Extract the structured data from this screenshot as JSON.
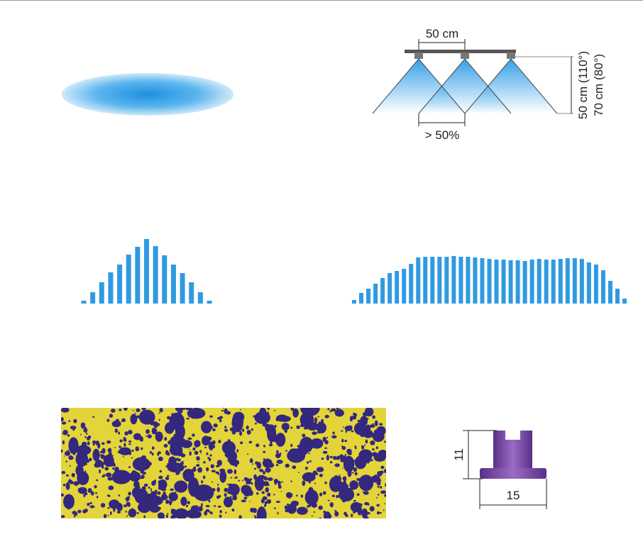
{
  "spacing_diagram": {
    "nozzle_spacing": "50 cm",
    "overlap": "> 50%",
    "height_110": "50 cm (110°)",
    "height_80": "70 cm (80°)"
  },
  "distributions": {
    "single_nozzle": {
      "values": [
        4,
        16,
        30,
        44,
        55,
        69,
        80,
        91,
        81,
        68,
        55,
        43,
        30,
        16,
        4
      ]
    },
    "boom": {
      "values": [
        5,
        15,
        21,
        28,
        36,
        43,
        46,
        49,
        56,
        65,
        66,
        66,
        66,
        66,
        67,
        66,
        66,
        65,
        64,
        63,
        62,
        62,
        61,
        61,
        60,
        62,
        63,
        62,
        62,
        63,
        64,
        64,
        63,
        58,
        55,
        47,
        32,
        21,
        7
      ]
    }
  },
  "nozzle_dimensions": {
    "height": "11",
    "width": "15"
  }
}
